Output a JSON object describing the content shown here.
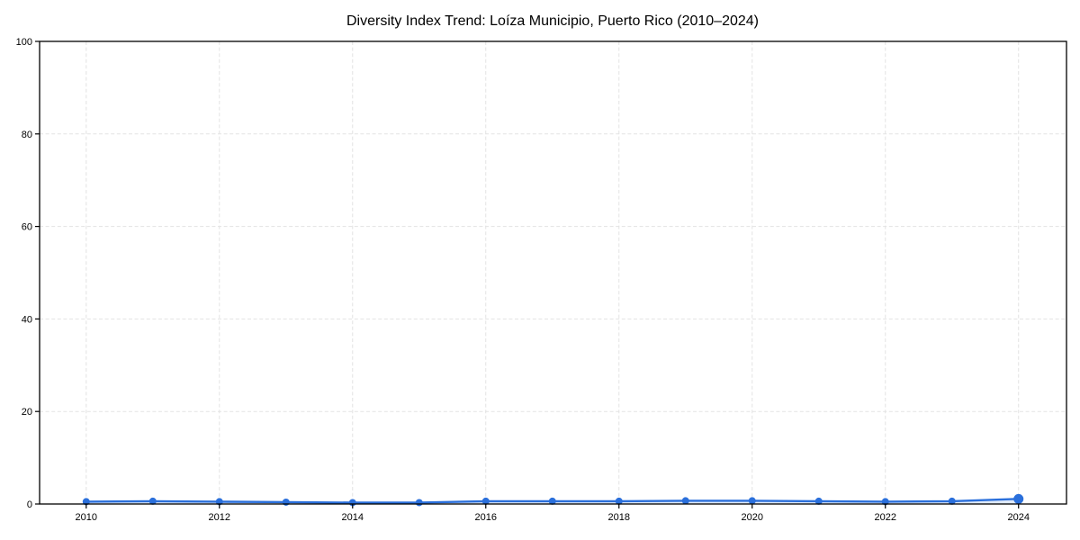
{
  "figure": {
    "background": "#ffffff"
  },
  "chart_data": {
    "type": "line",
    "title": "Diversity Index Trend: Loíza Municipio, Puerto Rico (2010–2024)",
    "x": [
      2010,
      2011,
      2012,
      2013,
      2014,
      2015,
      2016,
      2017,
      2018,
      2019,
      2020,
      2021,
      2022,
      2023,
      2024
    ],
    "series": [
      {
        "name": "Diversity Index",
        "values": [
          0.5,
          0.6,
          0.5,
          0.4,
          0.3,
          0.3,
          0.6,
          0.6,
          0.6,
          0.7,
          0.7,
          0.6,
          0.5,
          0.6,
          1.1
        ]
      }
    ],
    "xlabel": "",
    "ylabel": "",
    "xlim": [
      2009.3,
      2024.72
    ],
    "ylim": [
      0,
      100
    ],
    "xticks": [
      2010,
      2012,
      2014,
      2016,
      2018,
      2020,
      2022,
      2024
    ],
    "yticks": [
      0,
      20,
      40,
      60,
      80,
      100
    ],
    "grid": "dashed-both-axes",
    "legend": "none",
    "colors": {
      "line": "#2a6fdb",
      "area_fill": "rgba(42,111,219,0.15)",
      "grid": "#e3e3e3",
      "spine": "#000000",
      "text": "#000000"
    },
    "marker_radius": 4,
    "last_marker_radius": 5.5
  }
}
